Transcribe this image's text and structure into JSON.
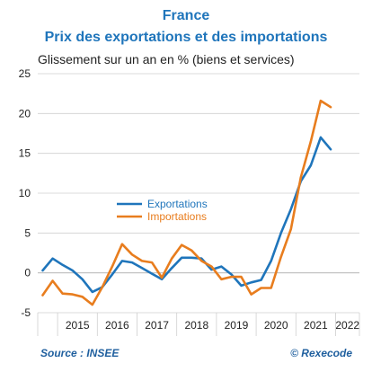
{
  "chart_data": {
    "type": "line",
    "title": "France",
    "subtitle": "Prix des exportations et des importations",
    "ylabel": "Glissement sur un an en % (biens et services)",
    "xlabel": "",
    "ylim": [
      -5,
      25
    ],
    "yticks": [
      -5,
      0,
      5,
      10,
      15,
      20,
      25
    ],
    "x_categories": [
      "2015",
      "2016",
      "2017",
      "2018",
      "2019",
      "2020",
      "2021",
      "2022"
    ],
    "x_range": [
      2014.5,
      2022.6
    ],
    "grid": "horizontal",
    "legend_position": "center-left",
    "series": [
      {
        "name": "Exportations",
        "color": "#1f75bb",
        "points": [
          [
            2014.625,
            0.3
          ],
          [
            2014.875,
            1.8
          ],
          [
            2015.125,
            1.0
          ],
          [
            2015.375,
            0.3
          ],
          [
            2015.625,
            -0.8
          ],
          [
            2015.875,
            -2.4
          ],
          [
            2016.125,
            -1.8
          ],
          [
            2016.375,
            -0.2
          ],
          [
            2016.625,
            1.5
          ],
          [
            2016.875,
            1.3
          ],
          [
            2017.125,
            0.6
          ],
          [
            2017.375,
            -0.1
          ],
          [
            2017.625,
            -0.8
          ],
          [
            2017.875,
            0.6
          ],
          [
            2018.125,
            1.9
          ],
          [
            2018.375,
            1.9
          ],
          [
            2018.625,
            1.8
          ],
          [
            2018.875,
            0.4
          ],
          [
            2019.125,
            0.8
          ],
          [
            2019.375,
            -0.2
          ],
          [
            2019.625,
            -1.6
          ],
          [
            2019.875,
            -1.2
          ],
          [
            2020.125,
            -0.9
          ],
          [
            2020.375,
            1.5
          ],
          [
            2020.625,
            5.0
          ],
          [
            2020.875,
            8.0
          ],
          [
            2021.125,
            11.5
          ],
          [
            2021.375,
            13.5
          ],
          [
            2021.625,
            17.0
          ],
          [
            2021.875,
            15.5
          ]
        ]
      },
      {
        "name": "Importations",
        "color": "#e87d1e",
        "points": [
          [
            2014.625,
            -2.8
          ],
          [
            2014.875,
            -1.0
          ],
          [
            2015.125,
            -2.6
          ],
          [
            2015.375,
            -2.7
          ],
          [
            2015.625,
            -3.0
          ],
          [
            2015.875,
            -4.0
          ],
          [
            2016.125,
            -1.8
          ],
          [
            2016.375,
            0.8
          ],
          [
            2016.625,
            3.6
          ],
          [
            2016.875,
            2.3
          ],
          [
            2017.125,
            1.5
          ],
          [
            2017.375,
            1.3
          ],
          [
            2017.625,
            -0.6
          ],
          [
            2017.875,
            1.8
          ],
          [
            2018.125,
            3.5
          ],
          [
            2018.375,
            2.8
          ],
          [
            2018.625,
            1.5
          ],
          [
            2018.875,
            0.8
          ],
          [
            2019.125,
            -0.8
          ],
          [
            2019.375,
            -0.5
          ],
          [
            2019.625,
            -0.5
          ],
          [
            2019.875,
            -2.7
          ],
          [
            2020.125,
            -1.9
          ],
          [
            2020.375,
            -1.9
          ],
          [
            2020.625,
            2.0
          ],
          [
            2020.875,
            5.5
          ],
          [
            2021.125,
            12.0
          ],
          [
            2021.375,
            16.5
          ],
          [
            2021.625,
            21.6
          ],
          [
            2021.875,
            20.8
          ]
        ]
      }
    ]
  },
  "footer": {
    "source": "Source : INSEE",
    "copyright": "© Rexecode"
  }
}
